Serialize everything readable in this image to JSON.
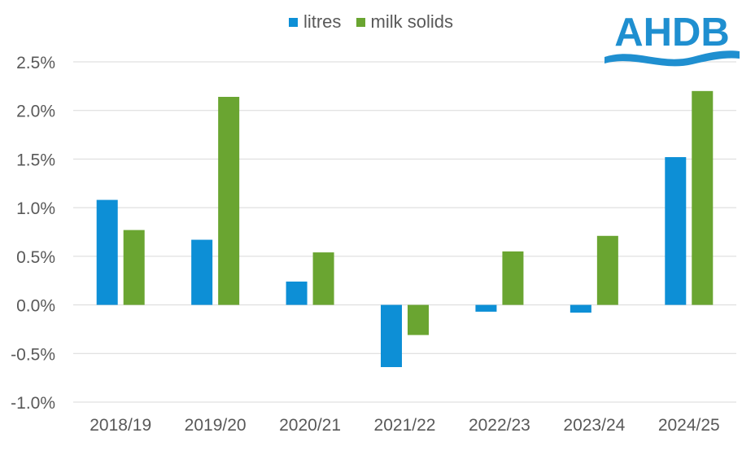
{
  "logo": {
    "text": "AHDB",
    "color": "#1f8fd0"
  },
  "chart_data": {
    "type": "bar",
    "categories": [
      "2018/19",
      "2019/20",
      "2020/21",
      "2021/22",
      "2022/23",
      "2023/24",
      "2024/25"
    ],
    "series": [
      {
        "name": "litres",
        "color": "#0d8fd6",
        "values": [
          1.08,
          0.67,
          0.24,
          -0.64,
          -0.07,
          -0.08,
          1.52
        ]
      },
      {
        "name": "milk solids",
        "color": "#6aa531",
        "values": [
          0.77,
          2.14,
          0.54,
          -0.31,
          0.55,
          0.71,
          2.2
        ]
      }
    ],
    "ylim": [
      -1.0,
      2.5
    ],
    "yticks": [
      {
        "value": 2.5,
        "label": "2.5%"
      },
      {
        "value": 2.0,
        "label": "2.0%"
      },
      {
        "value": 1.5,
        "label": "1.5%"
      },
      {
        "value": 1.0,
        "label": "1.0%"
      },
      {
        "value": 0.5,
        "label": "0.5%"
      },
      {
        "value": 0.0,
        "label": "0.0%"
      },
      {
        "value": -0.5,
        "label": "-0.5%"
      },
      {
        "value": -1.0,
        "label": "-1.0%"
      }
    ],
    "legend_position": "top",
    "grid": true,
    "grid_color": "#d9d9d9",
    "label_color": "#595959"
  }
}
